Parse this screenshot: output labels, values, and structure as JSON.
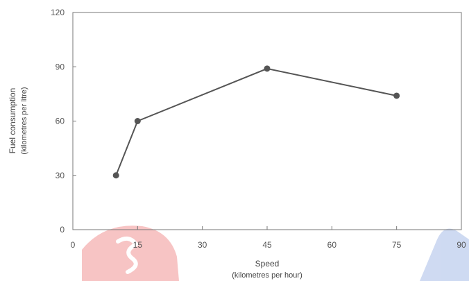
{
  "chart_data": {
    "type": "line",
    "xlabel": "Speed",
    "xlabel_sub": "(kilometres per hour)",
    "ylabel": "Fuel consumption",
    "ylabel_sub": "(kilometres per litre)",
    "xlim": [
      0,
      90
    ],
    "ylim": [
      0,
      120
    ],
    "x_ticks": [
      0,
      15,
      30,
      45,
      60,
      75,
      90
    ],
    "y_ticks": [
      0,
      30,
      60,
      90,
      120
    ],
    "grid": false,
    "series": [
      {
        "x": [
          10,
          15,
          45,
          75
        ],
        "y": [
          30,
          60,
          89,
          74
        ]
      }
    ],
    "colors": {
      "line": "#555555",
      "marker": "#555555",
      "axis": "#777777"
    }
  }
}
